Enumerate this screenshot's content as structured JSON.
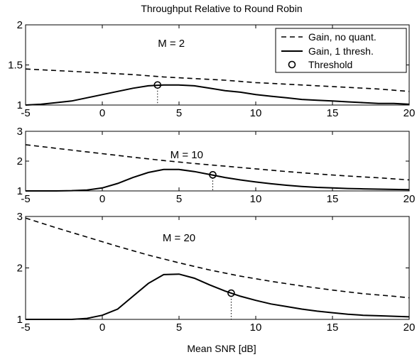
{
  "figure": {
    "title": "Throughput Relative to Round Robin",
    "xlabel": "Mean SNR [dB]"
  },
  "legend": {
    "items": [
      {
        "label": "Gain, no quant.",
        "style": "dashed"
      },
      {
        "label": "Gain, 1 thresh.",
        "style": "solid"
      },
      {
        "label": "Threshold",
        "style": "circle"
      }
    ]
  },
  "chart_data": [
    {
      "type": "line",
      "label": "M = 2",
      "xlim": [
        -5,
        20
      ],
      "ylim": [
        1,
        2
      ],
      "xticks": [
        -5,
        0,
        5,
        10,
        15,
        20
      ],
      "yticks": [
        1,
        1.5,
        2
      ],
      "ytick_labels": [
        "1",
        "1.5",
        "2"
      ],
      "series": [
        {
          "name": "Gain, no quant.",
          "style": "dashed",
          "x": [
            -5,
            -2,
            0,
            2,
            4,
            6,
            8,
            10,
            12,
            14,
            16,
            18,
            20
          ],
          "y": [
            1.45,
            1.42,
            1.4,
            1.38,
            1.35,
            1.33,
            1.31,
            1.28,
            1.26,
            1.24,
            1.22,
            1.2,
            1.17
          ]
        },
        {
          "name": "Gain, 1 thresh.",
          "style": "solid",
          "x": [
            -5,
            -4,
            -3,
            -2,
            -1,
            0,
            1,
            2,
            3,
            4,
            5,
            6,
            7,
            8,
            9,
            10,
            11,
            12,
            13,
            14,
            15,
            16,
            17,
            18,
            19,
            20
          ],
          "y": [
            1.0,
            1.01,
            1.03,
            1.05,
            1.09,
            1.13,
            1.17,
            1.21,
            1.24,
            1.25,
            1.25,
            1.24,
            1.21,
            1.18,
            1.16,
            1.13,
            1.11,
            1.09,
            1.07,
            1.06,
            1.05,
            1.04,
            1.03,
            1.02,
            1.02,
            1.01
          ]
        }
      ],
      "threshold": {
        "x": 3.6,
        "y": 1.25
      }
    },
    {
      "type": "line",
      "label": "M = 10",
      "xlim": [
        -5,
        20
      ],
      "ylim": [
        1,
        3
      ],
      "xticks": [
        -5,
        0,
        5,
        10,
        15,
        20
      ],
      "yticks": [
        1,
        2,
        3
      ],
      "ytick_labels": [
        "1",
        "2",
        "3"
      ],
      "series": [
        {
          "name": "Gain, no quant.",
          "style": "dashed",
          "x": [
            -5,
            -2,
            0,
            2,
            4,
            6,
            8,
            10,
            12,
            14,
            16,
            18,
            20
          ],
          "y": [
            2.55,
            2.37,
            2.25,
            2.13,
            2.02,
            1.92,
            1.83,
            1.74,
            1.65,
            1.57,
            1.5,
            1.44,
            1.37
          ]
        },
        {
          "name": "Gain, 1 thresh.",
          "style": "solid",
          "x": [
            -5,
            -3,
            -2,
            -1,
            0,
            1,
            2,
            3,
            4,
            5,
            6,
            7,
            8,
            9,
            10,
            11,
            12,
            13,
            14,
            15,
            16,
            17,
            18,
            19,
            20
          ],
          "y": [
            1.0,
            1.0,
            1.01,
            1.03,
            1.1,
            1.25,
            1.45,
            1.62,
            1.72,
            1.72,
            1.65,
            1.55,
            1.45,
            1.37,
            1.3,
            1.24,
            1.19,
            1.15,
            1.12,
            1.1,
            1.08,
            1.07,
            1.06,
            1.05,
            1.04
          ]
        }
      ],
      "threshold": {
        "x": 7.2,
        "y": 1.54
      }
    },
    {
      "type": "line",
      "label": "M = 20",
      "xlim": [
        -5,
        20
      ],
      "ylim": [
        1,
        3
      ],
      "xticks": [
        -5,
        0,
        5,
        10,
        15,
        20
      ],
      "yticks": [
        1,
        2,
        3
      ],
      "ytick_labels": [
        "1",
        "2",
        "3"
      ],
      "series": [
        {
          "name": "Gain, no quant.",
          "style": "dashed",
          "x": [
            -5,
            -3,
            -1,
            1,
            3,
            5,
            7,
            9,
            11,
            13,
            15,
            17,
            19,
            20
          ],
          "y": [
            2.97,
            2.78,
            2.6,
            2.42,
            2.25,
            2.1,
            1.96,
            1.84,
            1.74,
            1.65,
            1.57,
            1.5,
            1.45,
            1.42
          ]
        },
        {
          "name": "Gain, 1 thresh.",
          "style": "solid",
          "x": [
            -5,
            -2,
            -1,
            0,
            1,
            2,
            3,
            4,
            5,
            6,
            7,
            8,
            9,
            10,
            11,
            12,
            13,
            14,
            15,
            16,
            17,
            18,
            19,
            20
          ],
          "y": [
            1.0,
            1.0,
            1.02,
            1.08,
            1.2,
            1.45,
            1.7,
            1.87,
            1.88,
            1.8,
            1.67,
            1.55,
            1.45,
            1.37,
            1.3,
            1.25,
            1.2,
            1.16,
            1.13,
            1.1,
            1.08,
            1.07,
            1.06,
            1.05
          ]
        }
      ],
      "threshold": {
        "x": 8.4,
        "y": 1.51
      }
    }
  ]
}
